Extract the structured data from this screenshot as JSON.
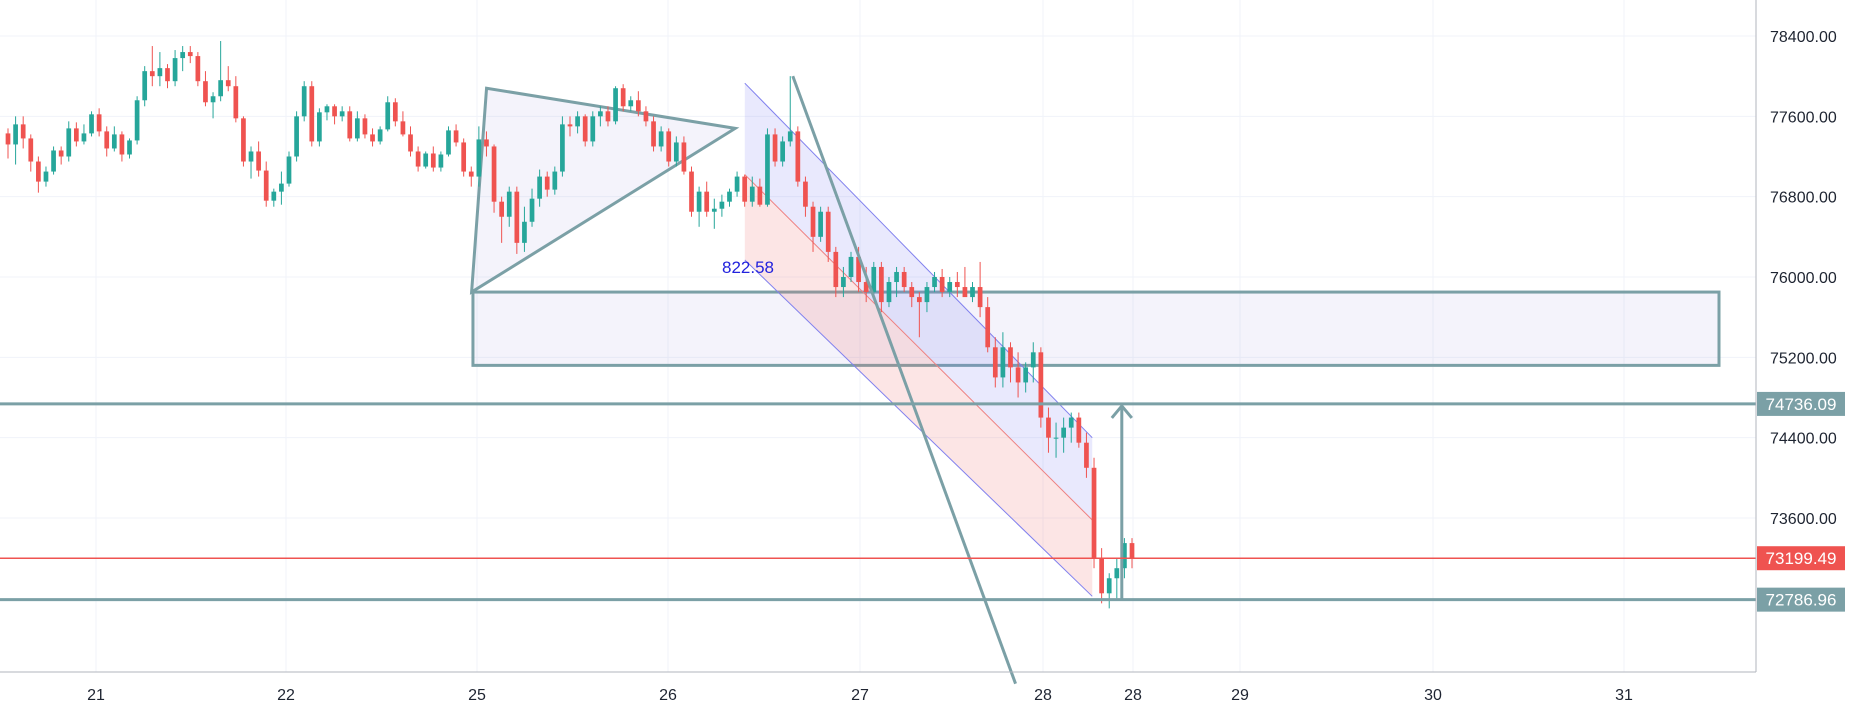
{
  "chart_data": {
    "type": "candlestick",
    "title": "",
    "x_axis": {
      "tick_labels": [
        "21",
        "22",
        "25",
        "26",
        "27",
        "28",
        "28",
        "29",
        "30",
        "31"
      ]
    },
    "y_axis": {
      "side": "right",
      "range": [
        71950,
        78800
      ],
      "tick_labels": [
        "78400.00",
        "77600.00",
        "76800.00",
        "76000.00",
        "75200.00",
        "74400.00",
        "73600.00"
      ]
    },
    "grid": true,
    "price_tags": [
      {
        "name": "resistance-level",
        "value": 74736.09,
        "label": "74736.09",
        "color": "#7ba0a6"
      },
      {
        "name": "last-price",
        "value": 73199.49,
        "label": "73199.49",
        "color": "#ef5350"
      },
      {
        "name": "support-level",
        "value": 72786.96,
        "label": "72786.96",
        "color": "#7ba0a6"
      }
    ],
    "annotations": [
      {
        "type": "text",
        "text": "822.58",
        "color": "#2222dd"
      }
    ],
    "drawings": {
      "triangle": [
        [
          "24.80",
          75850
        ],
        [
          "25.05",
          77880
        ],
        [
          "26.35",
          77480
        ]
      ],
      "target_zone": {
        "x_from": "24.85",
        "x_to": "31.50",
        "y_from": 75120,
        "y_to": 75850
      },
      "trend_line": [
        [
          "26.65",
          78000
        ],
        [
          "27.85",
          71950
        ]
      ],
      "channel": {
        "x_from": "26.40",
        "x_to": "28.25",
        "top": [
          77930,
          74400
        ],
        "mid": [
          77020,
          73580
        ],
        "bottom": [
          76170,
          72820
        ]
      },
      "target_arrow": {
        "x": "28.40",
        "from": 72786.96,
        "to": 74736.09
      }
    },
    "ohlc": [
      [
        77430,
        77480,
        77180,
        77320
      ],
      [
        77320,
        77600,
        77120,
        77520
      ],
      [
        77520,
        77600,
        77280,
        77380
      ],
      [
        77380,
        77420,
        77050,
        77150
      ],
      [
        77150,
        77200,
        76840,
        76950
      ],
      [
        76950,
        77100,
        76900,
        77050
      ],
      [
        77050,
        77300,
        77020,
        77260
      ],
      [
        77260,
        77300,
        77120,
        77200
      ],
      [
        77200,
        77550,
        77150,
        77480
      ],
      [
        77480,
        77540,
        77300,
        77350
      ],
      [
        77350,
        77520,
        77320,
        77430
      ],
      [
        77430,
        77650,
        77400,
        77620
      ],
      [
        77620,
        77680,
        77400,
        77450
      ],
      [
        77450,
        77500,
        77200,
        77280
      ],
      [
        77280,
        77500,
        77250,
        77420
      ],
      [
        77420,
        77450,
        77150,
        77220
      ],
      [
        77220,
        77380,
        77180,
        77360
      ],
      [
        77360,
        77800,
        77320,
        77760
      ],
      [
        77760,
        78100,
        77700,
        78050
      ],
      [
        78050,
        78300,
        77900,
        78000
      ],
      [
        78000,
        78240,
        77900,
        78080
      ],
      [
        78080,
        78120,
        77880,
        77950
      ],
      [
        77950,
        78260,
        77900,
        78180
      ],
      [
        78180,
        78300,
        78050,
        78240
      ],
      [
        78240,
        78300,
        78130,
        78200
      ],
      [
        78200,
        78240,
        77900,
        77950
      ],
      [
        77950,
        78050,
        77700,
        77740
      ],
      [
        77740,
        77840,
        77580,
        77800
      ],
      [
        77800,
        78350,
        77750,
        77960
      ],
      [
        77960,
        78100,
        77850,
        77900
      ],
      [
        77900,
        78000,
        77540,
        77580
      ],
      [
        77580,
        77600,
        77100,
        77150
      ],
      [
        77150,
        77300,
        76980,
        77250
      ],
      [
        77250,
        77350,
        77000,
        77060
      ],
      [
        77060,
        77150,
        76700,
        76760
      ],
      [
        76760,
        76880,
        76700,
        76850
      ],
      [
        76850,
        77050,
        76720,
        76930
      ],
      [
        76930,
        77250,
        76900,
        77200
      ],
      [
        77200,
        77650,
        77150,
        77600
      ],
      [
        77600,
        77950,
        77550,
        77900
      ],
      [
        77900,
        77950,
        77300,
        77350
      ],
      [
        77350,
        77680,
        77300,
        77640
      ],
      [
        77640,
        77720,
        77560,
        77700
      ],
      [
        77700,
        77720,
        77520,
        77600
      ],
      [
        77600,
        77700,
        77550,
        77650
      ],
      [
        77650,
        77700,
        77350,
        77380
      ],
      [
        77380,
        77650,
        77350,
        77580
      ],
      [
        77580,
        77620,
        77380,
        77420
      ],
      [
        77420,
        77480,
        77300,
        77350
      ],
      [
        77350,
        77500,
        77320,
        77470
      ],
      [
        77470,
        77800,
        77450,
        77740
      ],
      [
        77740,
        77780,
        77500,
        77550
      ],
      [
        77550,
        77650,
        77400,
        77420
      ],
      [
        77420,
        77500,
        77200,
        77250
      ],
      [
        77250,
        77300,
        77050,
        77100
      ],
      [
        77100,
        77250,
        77080,
        77230
      ],
      [
        77230,
        77300,
        77050,
        77090
      ],
      [
        77090,
        77250,
        77050,
        77220
      ],
      [
        77220,
        77500,
        77200,
        77460
      ],
      [
        77460,
        77520,
        77300,
        77340
      ],
      [
        77340,
        77380,
        77000,
        77050
      ],
      [
        77050,
        77100,
        76900,
        77000
      ],
      [
        77000,
        77500,
        76900,
        77370
      ],
      [
        77370,
        77450,
        77200,
        77300
      ],
      [
        77300,
        77320,
        76640,
        76750
      ],
      [
        76750,
        76800,
        76340,
        76600
      ],
      [
        76600,
        76900,
        76500,
        76850
      ],
      [
        76850,
        76900,
        76230,
        76340
      ],
      [
        76340,
        76700,
        76250,
        76550
      ],
      [
        76550,
        76880,
        76500,
        76780
      ],
      [
        76780,
        77070,
        76700,
        77000
      ],
      [
        77000,
        77050,
        76800,
        76870
      ],
      [
        76870,
        77100,
        76820,
        77050
      ],
      [
        77050,
        77600,
        77000,
        77520
      ],
      [
        77520,
        77600,
        77400,
        77500
      ],
      [
        77500,
        77650,
        77430,
        77600
      ],
      [
        77600,
        77620,
        77300,
        77350
      ],
      [
        77350,
        77650,
        77300,
        77600
      ],
      [
        77600,
        77700,
        77500,
        77650
      ],
      [
        77650,
        77700,
        77500,
        77550
      ],
      [
        77550,
        77900,
        77520,
        77880
      ],
      [
        77880,
        77920,
        77650,
        77700
      ],
      [
        77700,
        77800,
        77650,
        77760
      ],
      [
        77760,
        77850,
        77600,
        77650
      ],
      [
        77650,
        77700,
        77500,
        77550
      ],
      [
        77550,
        77600,
        77250,
        77300
      ],
      [
        77300,
        77500,
        77250,
        77450
      ],
      [
        77450,
        77480,
        77100,
        77150
      ],
      [
        77150,
        77400,
        77100,
        77340
      ],
      [
        77340,
        77400,
        77020,
        77050
      ],
      [
        77050,
        77100,
        76600,
        76650
      ],
      [
        76650,
        76900,
        76500,
        76850
      ],
      [
        76850,
        76950,
        76600,
        76650
      ],
      [
        76650,
        76780,
        76480,
        76680
      ],
      [
        76680,
        76820,
        76600,
        76750
      ],
      [
        76750,
        76880,
        76700,
        76850
      ],
      [
        76850,
        77050,
        76800,
        77000
      ],
      [
        77000,
        77020,
        76700,
        76750
      ],
      [
        76750,
        77000,
        76700,
        76900
      ],
      [
        76900,
        76980,
        76700,
        76720
      ],
      [
        76720,
        77480,
        76700,
        77420
      ],
      [
        77420,
        77480,
        77100,
        77150
      ],
      [
        77150,
        77400,
        77100,
        77350
      ],
      [
        77350,
        78000,
        77300,
        77450
      ],
      [
        77450,
        77500,
        76900,
        76950
      ],
      [
        76950,
        77000,
        76600,
        76700
      ],
      [
        76700,
        76750,
        76250,
        76400
      ],
      [
        76400,
        76700,
        76350,
        76650
      ],
      [
        76650,
        76700,
        76150,
        76250
      ],
      [
        76250,
        76300,
        75800,
        75900
      ],
      [
        75900,
        76100,
        75800,
        76000
      ],
      [
        76000,
        76250,
        75950,
        76200
      ],
      [
        76200,
        76300,
        75850,
        75950
      ],
      [
        75950,
        76100,
        75750,
        75850
      ],
      [
        75850,
        76150,
        75800,
        76100
      ],
      [
        76100,
        76150,
        75650,
        75750
      ],
      [
        75750,
        76000,
        75700,
        75950
      ],
      [
        75950,
        76100,
        75800,
        76050
      ],
      [
        76050,
        76100,
        75850,
        75900
      ],
      [
        75900,
        75950,
        75700,
        75800
      ],
      [
        75800,
        75850,
        75400,
        75750
      ],
      [
        75750,
        75950,
        75650,
        75900
      ],
      [
        75900,
        76050,
        75850,
        76000
      ],
      [
        76000,
        76080,
        75800,
        75850
      ],
      [
        75850,
        76000,
        75800,
        75950
      ],
      [
        75950,
        76050,
        75800,
        75900
      ],
      [
        75900,
        76100,
        75850,
        75800
      ],
      [
        75800,
        75950,
        75750,
        75900
      ],
      [
        75900,
        76150,
        75600,
        75700
      ],
      [
        75700,
        75800,
        75250,
        75300
      ],
      [
        75300,
        75400,
        74900,
        75000
      ],
      [
        75000,
        75450,
        74900,
        75300
      ],
      [
        75300,
        75350,
        74950,
        75100
      ],
      [
        75100,
        75250,
        74800,
        74950
      ],
      [
        74950,
        75150,
        74850,
        75100
      ],
      [
        75100,
        75350,
        74950,
        75250
      ],
      [
        75250,
        75300,
        74500,
        74600
      ],
      [
        74600,
        74700,
        74250,
        74400
      ],
      [
        74400,
        74550,
        74200,
        74400
      ],
      [
        74400,
        74600,
        74250,
        74500
      ],
      [
        74500,
        74650,
        74350,
        74600
      ],
      [
        74600,
        74650,
        74300,
        74350
      ],
      [
        74350,
        74450,
        74000,
        74100
      ],
      [
        74100,
        74200,
        73100,
        73200
      ],
      [
        73200,
        73300,
        72750,
        72850
      ],
      [
        72850,
        73050,
        72700,
        73000
      ],
      [
        73000,
        73200,
        72800,
        73100
      ],
      [
        73100,
        73400,
        73000,
        73350
      ],
      [
        73350,
        73400,
        73100,
        73199.49
      ]
    ]
  }
}
